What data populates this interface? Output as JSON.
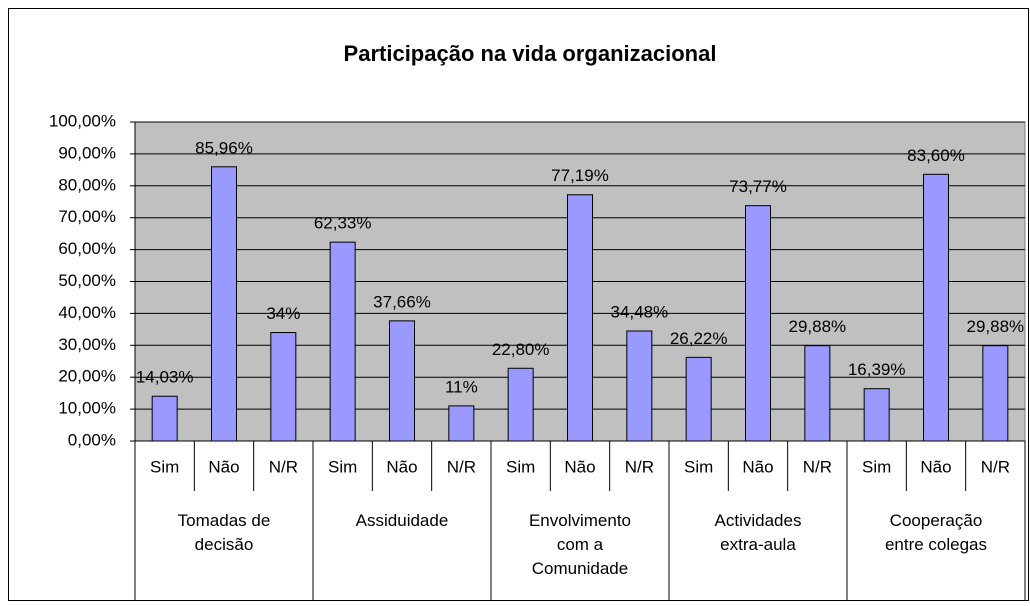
{
  "chart_data": {
    "type": "bar",
    "title": "Participação na vida organizacional",
    "color": "#9999ff",
    "groups": [
      {
        "name": "Tomadas de decisão",
        "categories": [
          "Sim",
          "Não",
          "N/R"
        ],
        "values": [
          14.03,
          85.96,
          34
        ],
        "value_labels": [
          "14,03%",
          "85,96%",
          "34%"
        ]
      },
      {
        "name": "Assiduidade",
        "categories": [
          "Sim",
          "Não",
          "N/R"
        ],
        "values": [
          62.33,
          37.66,
          11
        ],
        "value_labels": [
          "62,33%",
          "37,66%",
          "11%"
        ]
      },
      {
        "name": "Envolvimento com a Comunidade",
        "categories": [
          "Sim",
          "Não",
          "N/R"
        ],
        "values": [
          22.8,
          77.19,
          34.48
        ],
        "value_labels": [
          "22,80%",
          "77,19%",
          "34,48%"
        ]
      },
      {
        "name": "Actividades extra-aula",
        "categories": [
          "Sim",
          "Não",
          "N/R"
        ],
        "values": [
          26.22,
          73.77,
          29.88
        ],
        "value_labels": [
          "26,22%",
          "73,77%",
          "29,88%"
        ]
      },
      {
        "name": "Cooperação entre colegas",
        "categories": [
          "Sim",
          "Não",
          "N/R"
        ],
        "values": [
          16.39,
          83.6,
          29.88
        ],
        "value_labels": [
          "16,39%",
          "83,60%",
          "29,88%"
        ]
      }
    ],
    "ylim": [
      0,
      100
    ],
    "yticks": [
      {
        "value": 0,
        "label": "0,00%"
      },
      {
        "value": 10,
        "label": "10,00%"
      },
      {
        "value": 20,
        "label": "20,00%"
      },
      {
        "value": 30,
        "label": "30,00%"
      },
      {
        "value": 40,
        "label": "40,00%"
      },
      {
        "value": 50,
        "label": "50,00%"
      },
      {
        "value": 60,
        "label": "60,00%"
      },
      {
        "value": 70,
        "label": "70,00%"
      },
      {
        "value": 80,
        "label": "80,00%"
      },
      {
        "value": 90,
        "label": "90,00%"
      },
      {
        "value": 100,
        "label": "100,00%"
      }
    ],
    "grid": true
  }
}
